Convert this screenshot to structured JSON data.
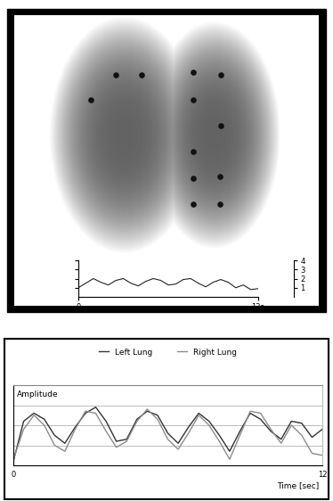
{
  "chart_data": [
    {
      "type": "scatter",
      "x": [
        24.9,
        33.1,
        41.7,
        58.9,
        68.0,
        58.9,
        68.0,
        58.9,
        58.9,
        67.8,
        58.9,
        67.8
      ],
      "values": [
        64.8,
        75.3,
        75.3,
        76.4,
        75.3,
        64.8,
        53.9,
        43.1,
        31.8,
        32.6,
        21.0,
        21.0
      ],
      "xlim": [
        0,
        100
      ],
      "ylim": [
        0,
        100
      ],
      "color": "#111111",
      "tick_labels": false
    },
    {
      "type": "line",
      "x": [
        0,
        0.5,
        1.0,
        1.5,
        2.0,
        2.5,
        3.0,
        3.5,
        4.0,
        4.5,
        5.0,
        5.5,
        6.0,
        6.5,
        7.0,
        7.5,
        8.0,
        8.5,
        9.0,
        9.5,
        10.0,
        10.5,
        11.0,
        11.5,
        12.0
      ],
      "values": [
        1.0,
        1.5,
        2.0,
        1.6,
        1.3,
        1.8,
        2.0,
        1.5,
        1.2,
        1.7,
        2.0,
        1.8,
        1.3,
        1.4,
        1.9,
        2.0,
        1.5,
        1.1,
        1.6,
        1.9,
        1.6,
        1.0,
        1.3,
        0.8,
        0.9
      ],
      "xlim": [
        0,
        12
      ],
      "xticks": [
        {
          "value": 0,
          "label": "0"
        },
        {
          "value": 12,
          "label": "12s"
        }
      ],
      "ylim": [
        0,
        4
      ],
      "yticks": [
        1,
        2,
        3,
        4
      ],
      "y2lim": [
        0,
        4
      ],
      "y2ticks": [
        1,
        2,
        3,
        4
      ],
      "tick_labels": "x",
      "color": "#222222"
    },
    {
      "type": "line",
      "x": [
        0,
        0.4,
        0.8,
        1.2,
        1.6,
        2.0,
        2.4,
        2.8,
        3.2,
        3.6,
        4.0,
        4.4,
        4.8,
        5.2,
        5.6,
        6.0,
        6.4,
        6.8,
        7.2,
        7.6,
        8.0,
        8.4,
        8.8,
        9.2,
        9.6,
        10.0,
        10.4,
        10.8,
        11.2,
        11.6,
        12.0
      ],
      "series": [
        {
          "name": "Left Lung",
          "color": "#333333",
          "values": [
            0.2,
            2.2,
            2.6,
            2.3,
            1.5,
            1.1,
            1.9,
            2.6,
            2.9,
            2.2,
            1.2,
            1.3,
            2.3,
            2.7,
            2.5,
            1.6,
            1.1,
            1.9,
            2.6,
            2.2,
            1.5,
            0.7,
            1.7,
            2.6,
            2.3,
            1.7,
            1.3,
            2.2,
            2.1,
            1.4,
            1.8
          ]
        },
        {
          "name": "Right Lung",
          "color": "#8c8c8c",
          "values": [
            0.3,
            1.8,
            2.5,
            2.0,
            1.0,
            0.7,
            1.8,
            2.7,
            2.6,
            1.7,
            0.9,
            1.2,
            2.2,
            2.8,
            2.3,
            1.3,
            0.8,
            1.6,
            2.5,
            2.0,
            1.2,
            0.3,
            1.5,
            2.7,
            2.6,
            1.8,
            1.1,
            2.0,
            1.5,
            0.6,
            0.5
          ]
        }
      ],
      "xlabel": "Time [sec]",
      "ylabel": "Amplitude",
      "xlim": [
        0,
        12
      ],
      "xticks": [
        0,
        12
      ],
      "ylim": [
        0,
        4
      ],
      "yticks": [
        1,
        2,
        3
      ],
      "grid": true,
      "legend": "upper center",
      "tick_labels": "x"
    }
  ]
}
